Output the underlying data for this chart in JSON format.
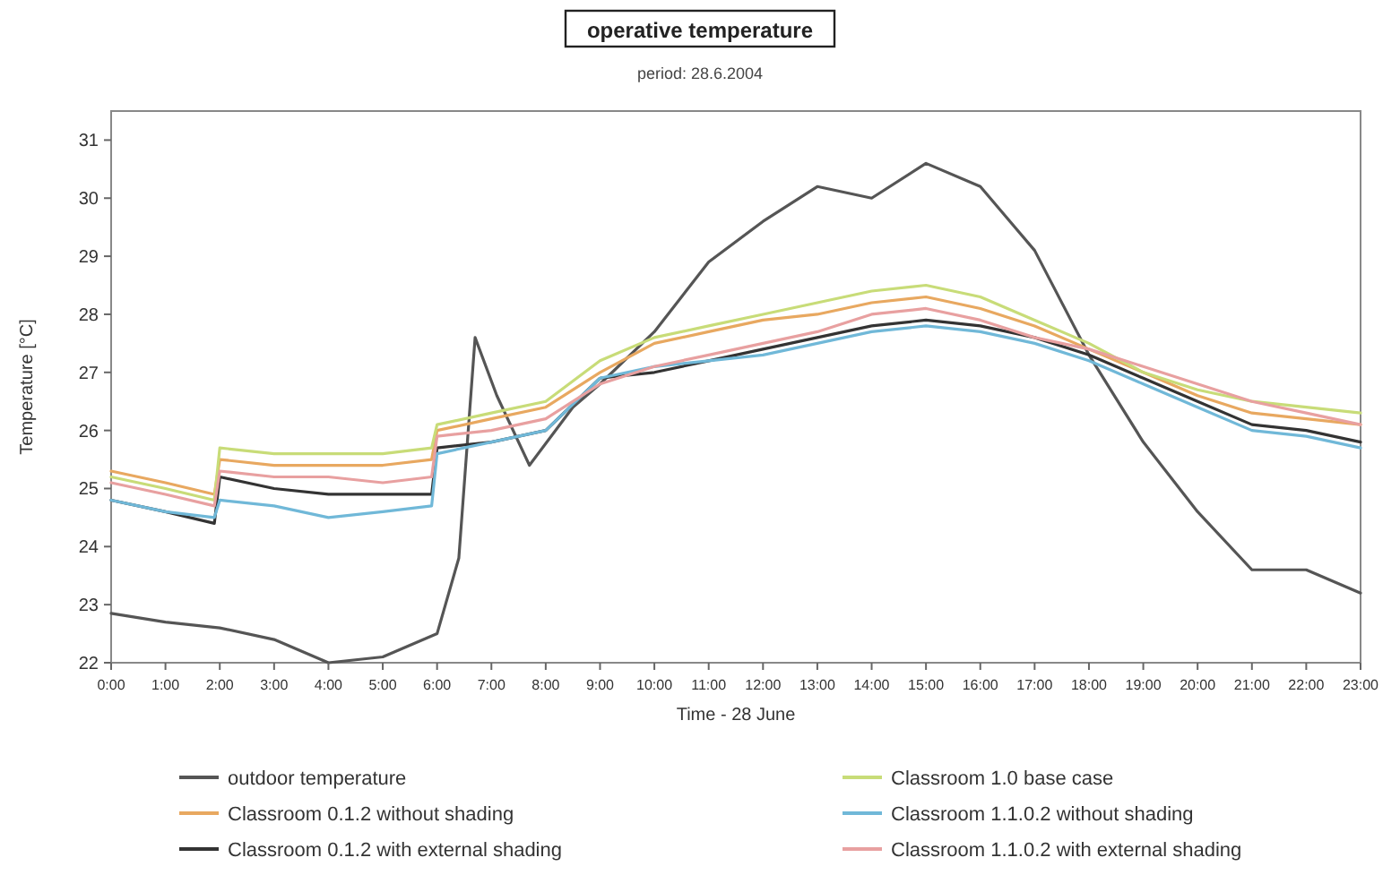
{
  "chart_data": {
    "type": "line",
    "title": "operative temperature",
    "subtitle": "period: 28.6.2004",
    "xlabel": "Time - 28 June",
    "ylabel": "Temperature [°C]",
    "x": [
      0,
      1,
      1.9,
      2,
      3,
      4,
      5,
      5.9,
      6,
      7,
      8,
      9,
      10,
      11,
      12,
      13,
      14,
      15,
      16,
      17,
      18,
      19,
      20,
      21,
      22,
      23
    ],
    "xlim": [
      0,
      23
    ],
    "xticks": [
      {
        "value": 0,
        "label": "0:00"
      },
      {
        "value": 1,
        "label": "1:00"
      },
      {
        "value": 2,
        "label": "2:00"
      },
      {
        "value": 3,
        "label": "3:00"
      },
      {
        "value": 4,
        "label": "4:00"
      },
      {
        "value": 5,
        "label": "5:00"
      },
      {
        "value": 6,
        "label": "6:00"
      },
      {
        "value": 7,
        "label": "7:00"
      },
      {
        "value": 8,
        "label": "8:00"
      },
      {
        "value": 9,
        "label": "9:00"
      },
      {
        "value": 10,
        "label": "10:00"
      },
      {
        "value": 11,
        "label": "11:00"
      },
      {
        "value": 12,
        "label": "12:00"
      },
      {
        "value": 13,
        "label": "13:00"
      },
      {
        "value": 14,
        "label": "14:00"
      },
      {
        "value": 15,
        "label": "15:00"
      },
      {
        "value": 16,
        "label": "16:00"
      },
      {
        "value": 17,
        "label": "17:00"
      },
      {
        "value": 18,
        "label": "18:00"
      },
      {
        "value": 19,
        "label": "19:00"
      },
      {
        "value": 20,
        "label": "20:00"
      },
      {
        "value": 21,
        "label": "21:00"
      },
      {
        "value": 22,
        "label": "22:00"
      },
      {
        "value": 23,
        "label": "23:00"
      }
    ],
    "ylim": [
      22,
      31.5
    ],
    "yticks": [
      22,
      23,
      24,
      25,
      26,
      27,
      28,
      29,
      30,
      31
    ],
    "grid": false,
    "legend": "bottom",
    "marker": "none",
    "line_style": "solid",
    "series": [
      {
        "name": "outdoor temperature",
        "color": "#555555",
        "x": [
          0,
          1,
          2,
          3,
          4,
          5,
          6,
          6.4,
          6.7,
          7.1,
          7.7,
          8.5,
          9,
          10,
          11,
          12,
          13,
          14,
          15,
          16,
          17,
          18,
          19,
          20,
          21,
          22,
          23
        ],
        "values": [
          22.85,
          22.7,
          22.6,
          22.4,
          22.0,
          22.1,
          22.5,
          23.8,
          27.6,
          26.6,
          25.4,
          26.4,
          26.8,
          27.7,
          28.9,
          29.6,
          30.2,
          30.0,
          30.6,
          30.2,
          29.1,
          27.3,
          25.8,
          24.6,
          23.6,
          23.6,
          23.2
        ]
      },
      {
        "name": "Classroom 0.1.2 without shading",
        "color": "#e8a860",
        "values": [
          25.3,
          25.1,
          24.9,
          25.5,
          25.4,
          25.4,
          25.4,
          25.5,
          26.0,
          26.2,
          26.4,
          27.0,
          27.5,
          27.7,
          27.9,
          28.0,
          28.2,
          28.3,
          28.1,
          27.8,
          27.4,
          27.0,
          26.6,
          26.3,
          26.2,
          26.1
        ]
      },
      {
        "name": "Classroom 0.1.2 with external shading",
        "color": "#333333",
        "values": [
          24.8,
          24.6,
          24.4,
          25.2,
          25.0,
          24.9,
          24.9,
          24.9,
          25.7,
          25.8,
          26.0,
          26.9,
          27.0,
          27.2,
          27.4,
          27.6,
          27.8,
          27.9,
          27.8,
          27.6,
          27.3,
          26.9,
          26.5,
          26.1,
          26.0,
          25.8
        ]
      },
      {
        "name": "Classroom 1.0 base case",
        "color": "#c8dc78",
        "values": [
          25.2,
          25.0,
          24.8,
          25.7,
          25.6,
          25.6,
          25.6,
          25.7,
          26.1,
          26.3,
          26.5,
          27.2,
          27.6,
          27.8,
          28.0,
          28.2,
          28.4,
          28.5,
          28.3,
          27.9,
          27.5,
          27.0,
          26.7,
          26.5,
          26.4,
          26.3
        ]
      },
      {
        "name": "Classroom 1.1.0.2 without shading",
        "color": "#70b8d8",
        "values": [
          24.8,
          24.6,
          24.5,
          24.8,
          24.7,
          24.5,
          24.6,
          24.7,
          25.6,
          25.8,
          26.0,
          26.9,
          27.1,
          27.2,
          27.3,
          27.5,
          27.7,
          27.8,
          27.7,
          27.5,
          27.2,
          26.8,
          26.4,
          26.0,
          25.9,
          25.7
        ]
      },
      {
        "name": "Classroom 1.1.0.2 with external shading",
        "color": "#e8a0a0",
        "values": [
          25.1,
          24.9,
          24.7,
          25.3,
          25.2,
          25.2,
          25.1,
          25.2,
          25.9,
          26.0,
          26.2,
          26.8,
          27.1,
          27.3,
          27.5,
          27.7,
          28.0,
          28.1,
          27.9,
          27.6,
          27.4,
          27.1,
          26.8,
          26.5,
          26.3,
          26.1
        ]
      }
    ]
  }
}
